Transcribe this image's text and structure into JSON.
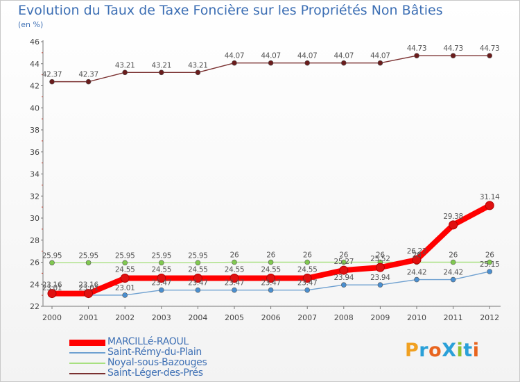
{
  "header": {
    "title": "Evolution du Taux de Taxe Foncière sur les Propriétés Non Bâties",
    "unit": "(en %)"
  },
  "logo": {
    "text": "ProXiti",
    "colors": [
      "#f0a020",
      "#2aa0d8",
      "#e8641e",
      "#2aa0d8",
      "#90c030",
      "#2aa0d8",
      "#e8641e"
    ]
  },
  "chart_data": {
    "type": "line",
    "title": "Evolution du Taux de Taxe Foncière sur les Propriétés Non Bâties",
    "ylabel": "(en %)",
    "xlabel": "",
    "ylim": [
      22,
      46
    ],
    "yticks": [
      "22",
      "24",
      "26",
      "28",
      "30",
      "32",
      "34",
      "36",
      "38",
      "40",
      "42",
      "44",
      "46"
    ],
    "categories": [
      "2000",
      "2001",
      "2002",
      "2003",
      "2004",
      "2005",
      "2006",
      "2007",
      "2008",
      "2009",
      "2010",
      "2011",
      "2012"
    ],
    "grid": false,
    "series": [
      {
        "name": "MARCILLé-RAOUL",
        "color": "#ff0000",
        "marker_color": "#e01010",
        "bold": true,
        "values": [
          23.16,
          23.16,
          24.55,
          24.55,
          24.55,
          24.55,
          24.55,
          24.55,
          25.27,
          25.52,
          26.22,
          29.38,
          31.14
        ],
        "labels": [
          "23.16",
          "23.16",
          "24.55",
          "24.55",
          "24.55",
          "24.55",
          "24.55",
          "24.55",
          "25.27",
          "25.52",
          "26.22",
          "29.38",
          "31.14"
        ]
      },
      {
        "name": "Saint-Rémy-du-Plain",
        "color": "#6ea0d0",
        "marker_color": "#4a8fd0",
        "bold": false,
        "values": [
          23.01,
          23.01,
          23.01,
          23.47,
          23.47,
          23.47,
          23.47,
          23.47,
          23.94,
          23.94,
          24.42,
          24.42,
          25.15
        ],
        "labels": [
          "23.01",
          "23.01",
          "23.01",
          "23.47",
          "23.47",
          "23.47",
          "23.47",
          "23.47",
          "23.94",
          "23.94",
          "24.42",
          "24.42",
          "25.15"
        ]
      },
      {
        "name": "Noyal-sous-Bazouges",
        "color": "#a8e080",
        "marker_color": "#80c850",
        "bold": false,
        "values": [
          25.95,
          25.95,
          25.95,
          25.95,
          25.95,
          26,
          26,
          26,
          26,
          26,
          26,
          26,
          26
        ],
        "labels": [
          "25.95",
          "25.95",
          "25.95",
          "25.95",
          "25.95",
          "26",
          "26",
          "26",
          "26",
          "26",
          "26",
          "26",
          "26"
        ]
      },
      {
        "name": "Saint-Léger-des-Prés",
        "color": "#7a3030",
        "marker_color": "#6a1c1c",
        "bold": false,
        "values": [
          42.37,
          42.37,
          43.21,
          43.21,
          43.21,
          44.07,
          44.07,
          44.07,
          44.07,
          44.07,
          44.73,
          44.73,
          44.73
        ],
        "labels": [
          "42.37",
          "42.37",
          "43.21",
          "43.21",
          "43.21",
          "44.07",
          "44.07",
          "44.07",
          "44.07",
          "44.07",
          "44.73",
          "44.73",
          "44.73"
        ]
      }
    ]
  }
}
